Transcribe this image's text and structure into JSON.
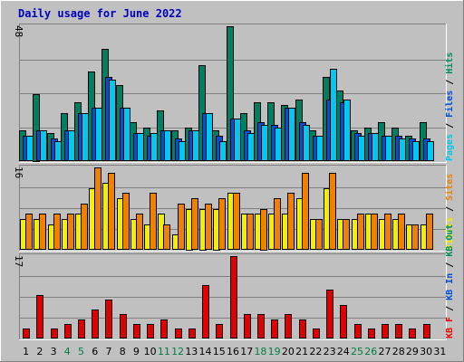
{
  "chart_data": [
    {
      "type": "bar",
      "title": "Daily usage for June 2022",
      "ymax_label": "48",
      "ylim": [
        0,
        48
      ],
      "right_labels": [
        {
          "text": "Pages",
          "color": "#00c8f0"
        },
        {
          "text": " / ",
          "color": "#000000"
        },
        {
          "text": "Files",
          "color": "#0050d8"
        },
        {
          "text": " / ",
          "color": "#000000"
        },
        {
          "text": "Hits",
          "color": "#009060"
        }
      ],
      "categories": [
        "1",
        "2",
        "3",
        "4",
        "5",
        "6",
        "7",
        "8",
        "9",
        "10",
        "11",
        "12",
        "13",
        "14",
        "15",
        "16",
        "17",
        "18",
        "19",
        "20",
        "21",
        "22",
        "23",
        "24",
        "25",
        "26",
        "27",
        "28",
        "29",
        "30",
        "31"
      ],
      "weekend_days": [
        "4",
        "5",
        "11",
        "12",
        "18",
        "19",
        "25",
        "26"
      ],
      "series": [
        {
          "name": "Hits",
          "color": "#008060",
          "values": [
            11,
            24,
            10,
            17,
            21,
            32,
            40,
            27,
            14,
            12,
            18,
            11,
            12,
            34,
            11,
            48,
            17,
            21,
            21,
            20,
            22,
            11,
            30,
            25,
            11,
            12,
            14,
            12,
            9,
            14,
            0
          ]
        },
        {
          "name": "Files",
          "color": "#0050d8",
          "values": [
            9,
            11,
            8,
            11,
            17,
            19,
            30,
            19,
            10,
            9,
            11,
            8,
            11,
            17,
            9,
            15,
            11,
            14,
            13,
            19,
            14,
            9,
            22,
            21,
            10,
            10,
            9,
            9,
            8,
            8,
            0
          ]
        },
        {
          "name": "Pages",
          "color": "#00c8f0",
          "values": [
            9,
            11,
            7,
            11,
            17,
            19,
            29,
            19,
            10,
            10,
            11,
            7,
            11,
            17,
            7,
            15,
            10,
            13,
            12,
            19,
            13,
            9,
            33,
            22,
            9,
            10,
            9,
            8,
            7,
            7,
            0
          ]
        }
      ]
    },
    {
      "type": "bar",
      "ymax_label": "16",
      "ylim": [
        0,
        16
      ],
      "right_labels": [
        {
          "text": "Visits",
          "color": "#f0f000"
        },
        {
          "text": " / ",
          "color": "#000000"
        },
        {
          "text": "Sites",
          "color": "#f08000"
        }
      ],
      "categories": [
        "1",
        "2",
        "3",
        "4",
        "5",
        "6",
        "7",
        "8",
        "9",
        "10",
        "11",
        "12",
        "13",
        "14",
        "15",
        "16",
        "17",
        "18",
        "19",
        "20",
        "21",
        "22",
        "23",
        "24",
        "25",
        "26",
        "27",
        "28",
        "29",
        "30",
        "31"
      ],
      "series": [
        {
          "name": "Visits",
          "color": "#f0f000",
          "values": [
            6,
            6,
            5,
            6,
            7,
            12,
            13,
            10,
            6,
            5,
            7,
            3,
            8,
            8,
            8,
            11,
            7,
            7,
            7,
            7,
            10,
            6,
            12,
            6,
            6,
            7,
            6,
            6,
            5,
            5,
            0
          ]
        },
        {
          "name": "Sites",
          "color": "#f08000",
          "values": [
            7,
            7,
            7,
            7,
            9,
            16,
            15,
            11,
            7,
            11,
            5,
            9,
            10,
            9,
            10,
            11,
            7,
            8,
            10,
            11,
            15,
            6,
            15,
            6,
            7,
            7,
            7,
            7,
            5,
            7,
            0
          ]
        }
      ]
    },
    {
      "type": "bar",
      "ymax_label": "17",
      "ylim": [
        0,
        17
      ],
      "right_labels": [
        {
          "text": "KB F",
          "color": "#f00000"
        },
        {
          "text": " / ",
          "color": "#000000"
        },
        {
          "text": "KB In",
          "color": "#0050d8"
        },
        {
          "text": " / ",
          "color": "#000000"
        },
        {
          "text": "KB Out",
          "color": "#009060"
        }
      ],
      "categories": [
        "1",
        "2",
        "3",
        "4",
        "5",
        "6",
        "7",
        "8",
        "9",
        "10",
        "11",
        "12",
        "13",
        "14",
        "15",
        "16",
        "17",
        "18",
        "19",
        "20",
        "21",
        "22",
        "23",
        "24",
        "25",
        "26",
        "27",
        "28",
        "29",
        "30",
        "31"
      ],
      "series": [
        {
          "name": "KB F",
          "color": "#e00000",
          "values": [
            2,
            9,
            2,
            3,
            4,
            6,
            8,
            5,
            3,
            3,
            4,
            2,
            2,
            11,
            3,
            17,
            5,
            5,
            4,
            5,
            4,
            2,
            10,
            7,
            3,
            2,
            3,
            3,
            2,
            3,
            0
          ]
        }
      ]
    }
  ]
}
